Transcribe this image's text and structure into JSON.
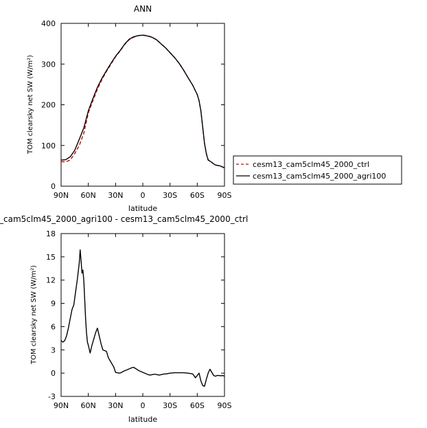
{
  "chart_data": [
    {
      "type": "line",
      "title": "ANN",
      "xlabel": "latitude",
      "ylabel": "TOM clearsky net SW  (W/m²)",
      "xticks": [
        -90,
        -60,
        -30,
        0,
        30,
        60,
        90
      ],
      "xtick_labels": [
        "90N",
        "60N",
        "30N",
        "0",
        "30S",
        "60S",
        "90S"
      ],
      "xlim": [
        -90,
        90
      ],
      "ylim": [
        0,
        400
      ],
      "yticks": [
        0,
        100,
        200,
        300,
        400
      ],
      "ytick_labels": [
        "0",
        "100",
        "200",
        "300",
        "400"
      ],
      "grid": false,
      "legend_position": "right",
      "series": [
        {
          "name": "cesm13_cam5clm45_2000_ctrl",
          "color": "#cc0000",
          "dash": "dashed",
          "x": [
            -90,
            -85,
            -80,
            -75,
            -70,
            -65,
            -60,
            -55,
            -50,
            -45,
            -40,
            -35,
            -30,
            -25,
            -20,
            -15,
            -10,
            -5,
            0,
            5,
            10,
            15,
            20,
            25,
            30,
            35,
            40,
            45,
            50,
            55,
            60,
            62,
            64,
            66,
            68,
            70,
            72,
            75,
            78,
            80,
            85,
            90
          ],
          "y": [
            60,
            60,
            64,
            80,
            100,
            130,
            180,
            210,
            238,
            262,
            282,
            300,
            318,
            332,
            348,
            360,
            366,
            370,
            371,
            370,
            366,
            360,
            350,
            340,
            328,
            316,
            302,
            285,
            266,
            248,
            225,
            210,
            185,
            145,
            105,
            80,
            65,
            60,
            55,
            52,
            50,
            45
          ]
        },
        {
          "name": "cesm13_cam5clm45_2000_agri100",
          "color": "#000000",
          "dash": "solid",
          "x": [
            -90,
            -85,
            -80,
            -75,
            -70,
            -65,
            -60,
            -55,
            -50,
            -45,
            -40,
            -35,
            -30,
            -25,
            -20,
            -15,
            -10,
            -5,
            0,
            5,
            10,
            15,
            20,
            25,
            30,
            35,
            40,
            45,
            50,
            55,
            60,
            62,
            64,
            66,
            68,
            70,
            72,
            75,
            78,
            80,
            85,
            90
          ],
          "y": [
            64,
            65,
            72,
            88,
            115,
            143,
            185,
            215,
            243,
            265,
            284,
            302,
            319,
            333,
            349,
            361,
            367,
            370,
            371,
            369,
            366,
            360,
            350,
            340,
            328,
            316,
            302,
            285,
            266,
            248,
            225,
            210,
            185,
            145,
            105,
            80,
            64,
            60,
            55,
            52,
            50,
            45
          ]
        }
      ]
    },
    {
      "type": "line",
      "title": "_cam5clm45_2000_agri100 - cesm13_cam5clm45_2000_ctrl",
      "xlabel": "latitude",
      "ylabel": "TOM clearsky net SW  (W/m²)",
      "xticks": [
        -90,
        -60,
        -30,
        0,
        30,
        60,
        90
      ],
      "xtick_labels": [
        "90N",
        "60N",
        "30N",
        "0",
        "30S",
        "60S",
        "90S"
      ],
      "xlim": [
        -90,
        90
      ],
      "ylim": [
        -3,
        18
      ],
      "yticks": [
        -3,
        0,
        3,
        6,
        9,
        12,
        15,
        18
      ],
      "ytick_labels": [
        "-3",
        "0",
        "3",
        "6",
        "9",
        "12",
        "15",
        "18"
      ],
      "grid": false,
      "series": [
        {
          "color": "#000000",
          "dash": "solid",
          "x": [
            -90,
            -88,
            -86,
            -84,
            -82,
            -80,
            -78,
            -76,
            -74,
            -72,
            -70,
            -69,
            -68,
            -67,
            -66,
            -65,
            -64,
            -63,
            -62,
            -61,
            -60,
            -58,
            -56,
            -54,
            -52,
            -50,
            -48,
            -46,
            -44,
            -42,
            -40,
            -38,
            -36,
            -34,
            -32,
            -30,
            -28,
            -26,
            -24,
            -22,
            -20,
            -18,
            -16,
            -14,
            -12,
            -10,
            -8,
            -6,
            -4,
            -2,
            0,
            2,
            4,
            6,
            8,
            10,
            12,
            14,
            16,
            18,
            20,
            22,
            24,
            26,
            28,
            30,
            35,
            40,
            45,
            50,
            55,
            58,
            60,
            62,
            64,
            66,
            68,
            70,
            72,
            74,
            76,
            78,
            80,
            82,
            84,
            86,
            88,
            90
          ],
          "y": [
            4.2,
            4.0,
            4.2,
            4.8,
            5.8,
            7.0,
            8.2,
            8.8,
            10.5,
            12.2,
            14.2,
            15.9,
            14.5,
            12.9,
            13.3,
            12.0,
            9.5,
            7.0,
            5.2,
            4.0,
            3.6,
            2.6,
            3.6,
            4.4,
            5.2,
            5.8,
            4.8,
            3.8,
            3.0,
            2.9,
            2.8,
            2.0,
            1.6,
            1.2,
            0.8,
            0.1,
            0.05,
            0.0,
            0.05,
            0.2,
            0.3,
            0.4,
            0.5,
            0.6,
            0.7,
            0.75,
            0.6,
            0.45,
            0.3,
            0.2,
            0.1,
            0.0,
            -0.1,
            -0.2,
            -0.25,
            -0.2,
            -0.15,
            -0.15,
            -0.2,
            -0.25,
            -0.2,
            -0.15,
            -0.1,
            -0.1,
            -0.05,
            0.0,
            0.05,
            0.05,
            0.05,
            0.0,
            -0.1,
            -0.6,
            -0.3,
            0.0,
            -1.0,
            -1.6,
            -1.7,
            -0.8,
            0.0,
            0.5,
            0.1,
            -0.3,
            -0.4,
            -0.3,
            -0.3,
            -0.35,
            -0.3,
            -0.4
          ]
        }
      ]
    }
  ]
}
